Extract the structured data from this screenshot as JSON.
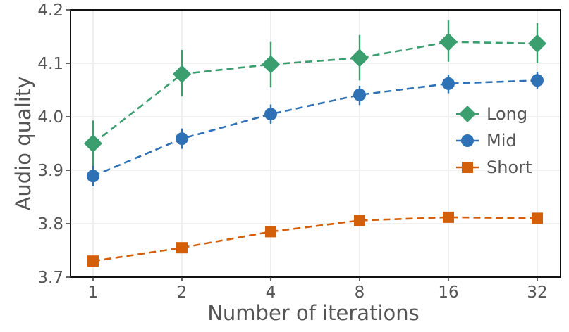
{
  "chart_data": {
    "type": "line",
    "title": "",
    "xlabel": "Number of iterations",
    "ylabel": "Audio quality",
    "x": [
      "1",
      "2",
      "4",
      "8",
      "16",
      "32"
    ],
    "ylim": [
      3.7,
      4.2
    ],
    "yticks": [
      "3.7",
      "3.8",
      "3.9",
      "4.0",
      "4.1",
      "4.2"
    ],
    "grid": true,
    "legend_position": "right",
    "series": [
      {
        "name": "Long",
        "marker": "diamond",
        "color": "#3a9e6f",
        "values": [
          3.95,
          4.08,
          4.098,
          4.11,
          4.14,
          4.137
        ],
        "error_low": [
          3.905,
          4.038,
          4.055,
          4.068,
          4.103,
          4.1
        ],
        "error_high": [
          3.993,
          4.125,
          4.14,
          4.153,
          4.18,
          4.175
        ]
      },
      {
        "name": "Mid",
        "marker": "circle",
        "color": "#2e72b5",
        "values": [
          3.889,
          3.959,
          4.005,
          4.041,
          4.062,
          4.068
        ],
        "error_low": [
          3.87,
          3.94,
          3.987,
          4.022,
          4.044,
          4.052
        ],
        "error_high": [
          3.908,
          3.978,
          4.023,
          4.058,
          4.079,
          4.084
        ]
      },
      {
        "name": "Short",
        "marker": "square",
        "color": "#d35f0a",
        "values": [
          3.73,
          3.755,
          3.785,
          3.806,
          3.812,
          3.81
        ],
        "error_low": [
          3.724,
          3.749,
          3.779,
          3.8,
          3.806,
          3.804
        ],
        "error_high": [
          3.736,
          3.761,
          3.791,
          3.812,
          3.818,
          3.816
        ]
      }
    ]
  }
}
